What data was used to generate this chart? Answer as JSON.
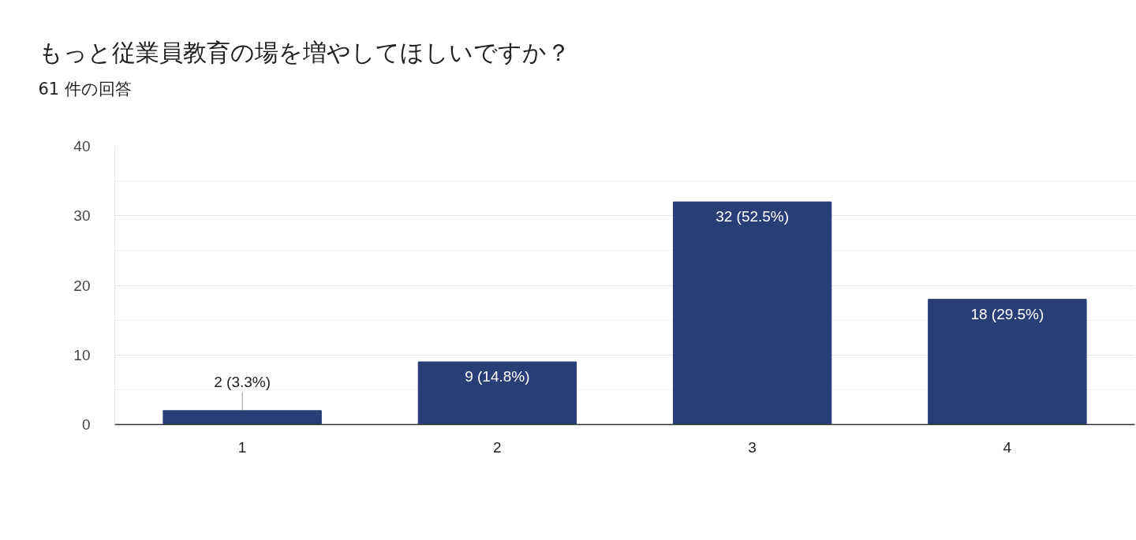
{
  "chart_data": {
    "type": "bar",
    "title": "もっと従業員教育の場を増やしてほしいですか？",
    "subtitle": "61 件の回答",
    "categories": [
      "1",
      "2",
      "3",
      "4"
    ],
    "values": [
      2,
      9,
      32,
      18
    ],
    "color": "#293e76",
    "value_labels": [
      "2 (3.3%)",
      "9 (14.8%)",
      "32 (52.5%)",
      "18 (29.5%)"
    ],
    "ylim": [
      0,
      40
    ],
    "yticks": [
      0,
      {
        "value": 5,
        "label": null
      },
      10,
      {
        "value": 15,
        "label": null
      },
      20,
      {
        "value": 25,
        "label": null
      },
      30,
      {
        "value": 35,
        "label": null
      },
      40
    ],
    "grid": "y"
  }
}
